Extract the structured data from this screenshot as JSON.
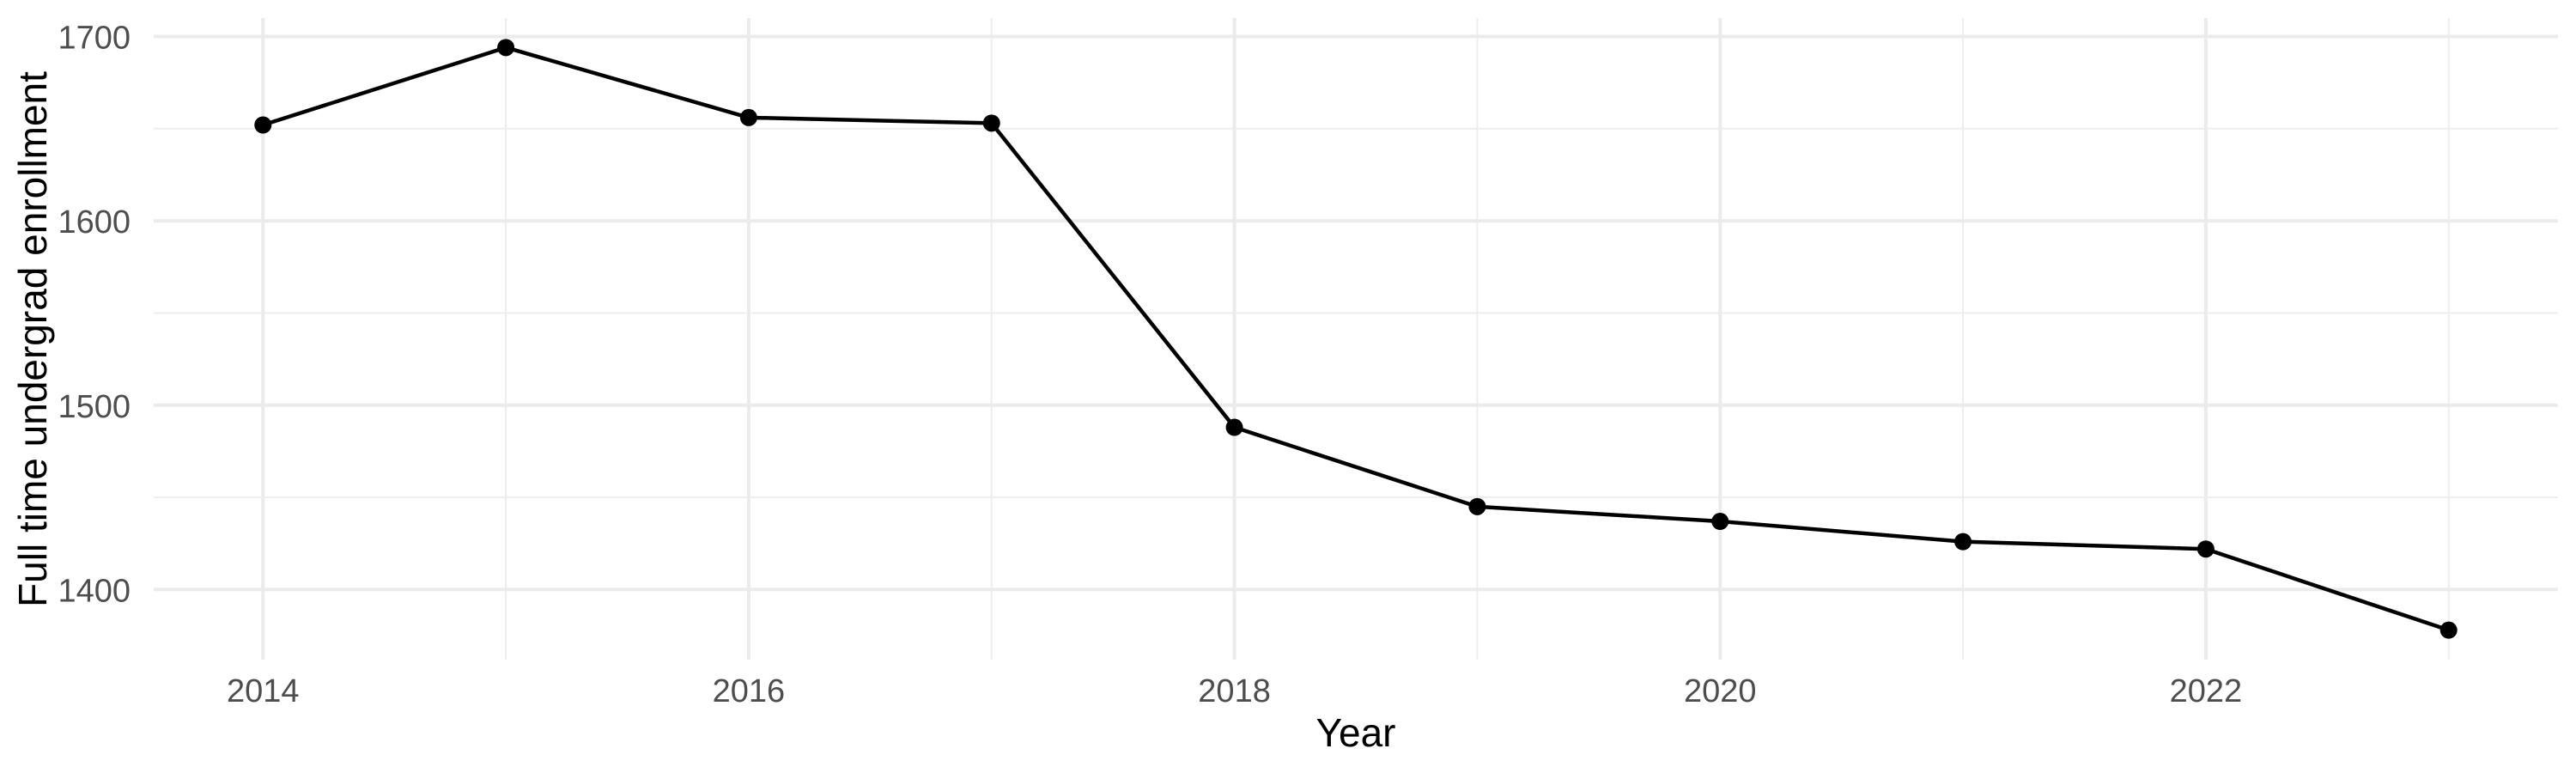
{
  "chart_data": {
    "type": "line",
    "title": "",
    "xlabel": "Year",
    "ylabel": "Full time undergrad enrollment",
    "x": [
      2014,
      2015,
      2016,
      2017,
      2018,
      2019,
      2020,
      2021,
      2022,
      2023
    ],
    "values": [
      1652,
      1694,
      1656,
      1653,
      1488,
      1445,
      1437,
      1426,
      1422,
      1378
    ],
    "x_ticks": [
      2014,
      2016,
      2018,
      2020,
      2022
    ],
    "x_minor_ticks": [
      2015,
      2017,
      2019,
      2021,
      2023
    ],
    "y_ticks": [
      1400,
      1500,
      1600,
      1700
    ],
    "y_minor_ticks": [
      1450,
      1550,
      1650
    ],
    "xlim": [
      2013.55,
      2023.45
    ],
    "ylim": [
      1362,
      1710
    ],
    "grid": true,
    "legend": false,
    "marker": "point",
    "style": {
      "line_color": "#000000",
      "point_color": "#000000",
      "grid_major_color": "#ebebeb",
      "grid_minor_color": "#ededed",
      "tick_label_color": "#4d4d4d",
      "axis_title_color": "#000000",
      "background_color": "#ffffff"
    }
  }
}
